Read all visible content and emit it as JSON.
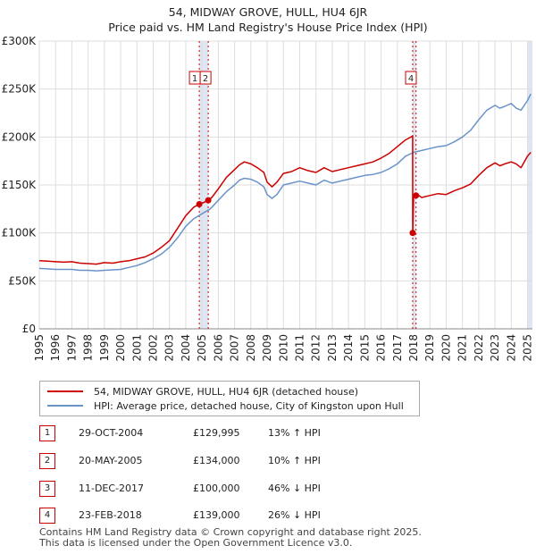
{
  "header": {
    "title_line1": "54, MIDWAY GROVE, HULL, HU4 6JR",
    "title_line2": "Price paid vs. HM Land Registry's House Price Index (HPI)"
  },
  "colors": {
    "property": "#cc0000",
    "hpi": "#6a93c8",
    "grid": "#dddddd",
    "band": "#dfe6f3"
  },
  "chart_data": {
    "type": "line",
    "title": "54, MIDWAY GROVE, HULL, HU4 6JR — Price paid vs. HM Land Registry's House Price Index (HPI)",
    "xlabel": "",
    "ylabel": "",
    "xlim": [
      1995.0,
      2025.3
    ],
    "ylim": [
      0,
      300000
    ],
    "y_ticks": [
      0,
      50000,
      100000,
      150000,
      200000,
      250000,
      300000
    ],
    "y_tick_labels": [
      "£0",
      "£50K",
      "£100K",
      "£150K",
      "£200K",
      "£250K",
      "£300K"
    ],
    "x_ticks": [
      1995,
      1996,
      1997,
      1998,
      1999,
      2000,
      2001,
      2002,
      2003,
      2004,
      2005,
      2006,
      2007,
      2008,
      2009,
      2010,
      2011,
      2012,
      2013,
      2014,
      2015,
      2016,
      2017,
      2018,
      2019,
      2020,
      2021,
      2022,
      2023,
      2024,
      2025
    ],
    "grid": true,
    "series": [
      {
        "name": "54, MIDWAY GROVE, HULL, HU4 6JR (detached house)",
        "x": [
          1995.0,
          1995.5,
          1996.0,
          1996.5,
          1997.0,
          1997.5,
          1998.0,
          1998.5,
          1999.0,
          1999.5,
          2000.0,
          2000.5,
          2001.0,
          2001.5,
          2002.0,
          2002.5,
          2003.0,
          2003.5,
          2004.0,
          2004.5,
          2004.83,
          2005.0,
          2005.38,
          2005.6,
          2006.0,
          2006.5,
          2007.0,
          2007.3,
          2007.6,
          2008.0,
          2008.4,
          2008.8,
          2009.0,
          2009.3,
          2009.6,
          2010.0,
          2010.5,
          2011.0,
          2011.5,
          2012.0,
          2012.5,
          2013.0,
          2013.5,
          2014.0,
          2014.5,
          2015.0,
          2015.5,
          2016.0,
          2016.5,
          2017.0,
          2017.5,
          2017.94,
          2017.945,
          2018.0,
          2018.15,
          2018.5,
          2019.0,
          2019.5,
          2020.0,
          2020.5,
          2021.0,
          2021.5,
          2022.0,
          2022.5,
          2023.0,
          2023.3,
          2023.6,
          2024.0,
          2024.3,
          2024.6,
          2025.0,
          2025.2
        ],
        "values": [
          71000,
          70500,
          70000,
          69500,
          70000,
          68500,
          68000,
          67500,
          69000,
          68500,
          70000,
          71000,
          73000,
          75000,
          79000,
          85000,
          92000,
          105000,
          118000,
          127000,
          129995,
          131000,
          134000,
          137000,
          146000,
          158000,
          166000,
          171000,
          174000,
          172000,
          168000,
          163000,
          153000,
          148000,
          153000,
          162000,
          164000,
          168000,
          165000,
          163000,
          168000,
          164000,
          166000,
          168000,
          170000,
          172000,
          174000,
          178000,
          183000,
          190000,
          197000,
          201000,
          100000,
          139000,
          141000,
          137000,
          139000,
          141000,
          140000,
          144000,
          147000,
          151000,
          160000,
          168000,
          173000,
          170000,
          172000,
          174000,
          172000,
          168000,
          180000,
          184000
        ]
      },
      {
        "name": "HPI: Average price, detached house, City of Kingston upon Hull",
        "x": [
          1995.0,
          1995.5,
          1996.0,
          1996.5,
          1997.0,
          1997.5,
          1998.0,
          1998.5,
          1999.0,
          1999.5,
          2000.0,
          2000.5,
          2001.0,
          2001.5,
          2002.0,
          2002.5,
          2003.0,
          2003.5,
          2004.0,
          2004.5,
          2005.0,
          2005.5,
          2006.0,
          2006.5,
          2007.0,
          2007.3,
          2007.6,
          2008.0,
          2008.4,
          2008.8,
          2009.0,
          2009.3,
          2009.6,
          2010.0,
          2010.5,
          2011.0,
          2011.5,
          2012.0,
          2012.5,
          2013.0,
          2013.5,
          2014.0,
          2014.5,
          2015.0,
          2015.5,
          2016.0,
          2016.5,
          2017.0,
          2017.5,
          2018.0,
          2018.5,
          2019.0,
          2019.5,
          2020.0,
          2020.5,
          2021.0,
          2021.5,
          2022.0,
          2022.5,
          2023.0,
          2023.3,
          2023.6,
          2024.0,
          2024.3,
          2024.6,
          2025.0,
          2025.2
        ],
        "values": [
          63000,
          62500,
          62000,
          62000,
          62000,
          61000,
          61000,
          60500,
          61000,
          61500,
          62000,
          64000,
          66000,
          69000,
          73000,
          78000,
          85000,
          95000,
          107000,
          115000,
          120000,
          125000,
          134000,
          143000,
          150000,
          155000,
          157000,
          156000,
          153000,
          148000,
          140000,
          136000,
          140000,
          150000,
          152000,
          154000,
          152000,
          150000,
          155000,
          152000,
          154000,
          156000,
          158000,
          160000,
          161000,
          163000,
          167000,
          172000,
          180000,
          184000,
          186000,
          188000,
          190000,
          191000,
          195000,
          200000,
          207000,
          218000,
          228000,
          233000,
          230000,
          232000,
          235000,
          230000,
          228000,
          238000,
          245000
        ]
      }
    ],
    "sale_markers": [
      {
        "label": "1",
        "x": 2004.83,
        "value": 129995
      },
      {
        "label": "2",
        "x": 2005.38,
        "value": 134000
      },
      {
        "label": "3",
        "x": 2017.94,
        "value": 100000
      },
      {
        "label": "4",
        "x": 2018.15,
        "value": 139000
      }
    ],
    "marker_boxes": [
      {
        "label": "1",
        "x": 2004.83
      },
      {
        "label": "2",
        "x": 2005.38
      },
      {
        "label": "4",
        "x": 2018.0
      }
    ],
    "shaded_periods": [
      [
        2004.83,
        2005.38
      ],
      [
        2017.94,
        2018.15
      ],
      [
        2025.0,
        2025.3
      ]
    ]
  },
  "legend": {
    "property_label": "54, MIDWAY GROVE, HULL, HU4 6JR (detached house)",
    "hpi_label": "HPI: Average price, detached house, City of Kingston upon Hull"
  },
  "sales": [
    {
      "num": "1",
      "date": "29-OCT-2004",
      "price": "£129,995",
      "hpi": "13% ↑ HPI"
    },
    {
      "num": "2",
      "date": "20-MAY-2005",
      "price": "£134,000",
      "hpi": "10% ↑ HPI"
    },
    {
      "num": "3",
      "date": "11-DEC-2017",
      "price": "£100,000",
      "hpi": "46% ↓ HPI"
    },
    {
      "num": "4",
      "date": "23-FEB-2018",
      "price": "£139,000",
      "hpi": "26% ↓ HPI"
    }
  ],
  "footer": {
    "line1": "Contains HM Land Registry data © Crown copyright and database right 2025.",
    "line2": "This data is licensed under the Open Government Licence v3.0."
  }
}
